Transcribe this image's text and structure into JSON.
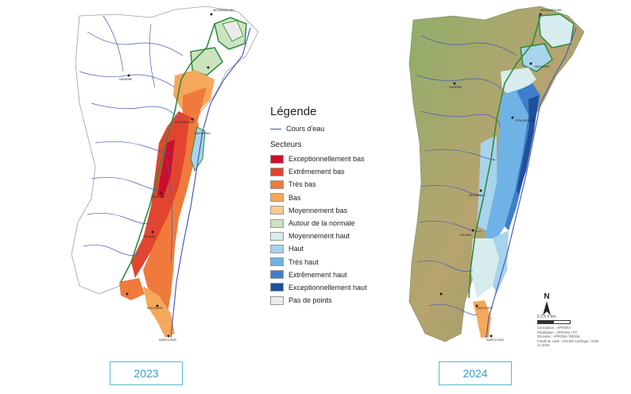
{
  "legend": {
    "title": "Légende",
    "river_label": "Cours d'eau",
    "sectors_title": "Secteurs",
    "items": [
      {
        "label": "Exceptionnellement bas",
        "color": "#c8102e"
      },
      {
        "label": "Extrêmement bas",
        "color": "#e2452f"
      },
      {
        "label": "Très bas",
        "color": "#f07a3c"
      },
      {
        "label": "Bas",
        "color": "#f5a85a"
      },
      {
        "label": "Moyennement bas",
        "color": "#f8cd8c"
      },
      {
        "label": "Autour de la normale",
        "color": "#cde3c0"
      },
      {
        "label": "Moyennement haut",
        "color": "#d7ecee"
      },
      {
        "label": "Haut",
        "color": "#a7d3ec"
      },
      {
        "label": "Très haut",
        "color": "#6fb3e6"
      },
      {
        "label": "Extrêmement haut",
        "color": "#3f7fc9"
      },
      {
        "label": "Exceptionnellement haut",
        "color": "#1e4f9a"
      },
      {
        "label": "Pas de points",
        "color": "#ebebeb"
      }
    ]
  },
  "maps": [
    {
      "year": "2023"
    },
    {
      "year": "2024"
    }
  ],
  "cities_2023": {
    "wissembourg": "WISSEMBOURG",
    "saverne": "SAVERNE",
    "strasbourg": "STRASBOURG",
    "haguenau": "HAGUENAU",
    "selestat": "SÉLESTAT",
    "colmar": "COLMAR",
    "mulhouse": "MULHOUSE",
    "saint_louis": "SAINT-LOUIS"
  },
  "cities_2024": {
    "wissembourg": "WISSEMBOURG",
    "saverne": "SAVERNE",
    "strasbourg": "STRASBOURG",
    "haguenau": "HAGUENAU",
    "selestat": "SÉLESTAT",
    "colmar": "COLMAR",
    "mulhouse": "MULHOUSE",
    "saint_louis": "SAINT-LOUIS"
  },
  "scale": {
    "north": "N",
    "labels": "0   2.5   5 km"
  },
  "credits": [
    "Conception : APRONA",
    "Réalisation : APRONA / PT",
    "Données : APRONA / BRGM",
    "Fonds de carte : IGN BD Carthage / OSM",
    "(c) 2024"
  ]
}
